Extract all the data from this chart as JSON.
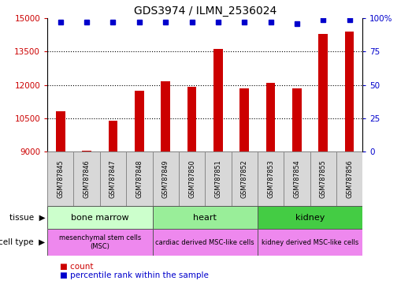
{
  "title": "GDS3974 / ILMN_2536024",
  "samples": [
    "GSM787845",
    "GSM787846",
    "GSM787847",
    "GSM787848",
    "GSM787849",
    "GSM787850",
    "GSM787851",
    "GSM787852",
    "GSM787853",
    "GSM787854",
    "GSM787855",
    "GSM787856"
  ],
  "counts": [
    10800,
    9050,
    10400,
    11750,
    12150,
    11900,
    13600,
    11850,
    12100,
    11850,
    14300,
    14400
  ],
  "percentile_ranks": [
    97,
    97,
    97,
    97,
    97,
    97,
    97,
    97,
    97,
    96,
    99,
    99
  ],
  "ylim_left": [
    9000,
    15000
  ],
  "ylim_right": [
    0,
    100
  ],
  "yticks_left": [
    9000,
    10500,
    12000,
    13500,
    15000
  ],
  "yticks_right": [
    0,
    25,
    50,
    75,
    100
  ],
  "bar_color": "#cc0000",
  "dot_color": "#0000cc",
  "background_color": "#ffffff",
  "tissue_groups": [
    {
      "label": "bone marrow",
      "start": 0,
      "end": 3,
      "color": "#ccffcc"
    },
    {
      "label": "heart",
      "start": 4,
      "end": 7,
      "color": "#99ee99"
    },
    {
      "label": "kidney",
      "start": 8,
      "end": 11,
      "color": "#44cc44"
    }
  ],
  "celltype_groups": [
    {
      "label": "mesenchymal stem cells\n(MSC)",
      "start": 0,
      "end": 3,
      "color": "#ee88ee"
    },
    {
      "label": "cardiac derived MSC-like cells",
      "start": 4,
      "end": 7,
      "color": "#ee88ee"
    },
    {
      "label": "kidney derived MSC-like cells",
      "start": 8,
      "end": 11,
      "color": "#ee88ee"
    }
  ],
  "grid_color": "#000000",
  "tick_label_color_left": "#cc0000",
  "tick_label_color_right": "#0000cc",
  "bar_width": 0.35
}
